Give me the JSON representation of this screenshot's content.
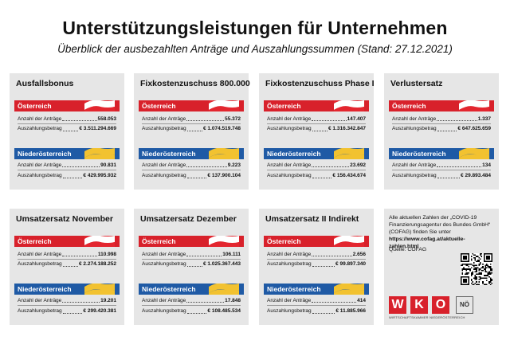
{
  "title": "Unterstützungsleistungen für Unternehmen",
  "subtitle": "Überblick der ausbezahlten Anträge und Auszahlungssummen (Stand: 27.12.2021)",
  "labels": {
    "count": "Anzahl der Anträge",
    "amount": "Auszahlungsbetrag"
  },
  "regions": {
    "at": "Österreich",
    "noe": "Niederösterreich"
  },
  "colors": {
    "red": "#d8212b",
    "blue": "#1f5aa5",
    "card": "#e6e6e6"
  },
  "cards": [
    {
      "title": "Ausfallsbonus",
      "at": {
        "count": "558.053",
        "amount": "€ 3.511.294.669"
      },
      "noe": {
        "count": "90.831",
        "amount": "€ 429.995.932"
      }
    },
    {
      "title": "Fixkostenzuschuss 800.000",
      "at": {
        "count": "55.372",
        "amount": "€ 1.074.519.748"
      },
      "noe": {
        "count": "9.223",
        "amount": "€ 137.900.104"
      }
    },
    {
      "title": "Fixkostenzuschuss Phase I",
      "at": {
        "count": "147.407",
        "amount": "€ 1.316.342.847"
      },
      "noe": {
        "count": "23.692",
        "amount": "€ 156.434.674"
      }
    },
    {
      "title": "Verlustersatz",
      "at": {
        "count": "1.337",
        "amount": "€ 647.625.659"
      },
      "noe": {
        "count": "134",
        "amount": "€ 29.893.484"
      }
    },
    {
      "title": "Umsatzersatz November",
      "at": {
        "count": "110.998",
        "amount": "€ 2.274.188.252"
      },
      "noe": {
        "count": "19.201",
        "amount": "€ 299.420.381"
      }
    },
    {
      "title": "Umsatzersatz Dezember",
      "at": {
        "count": "106.111",
        "amount": "€ 1.025.367.443"
      },
      "noe": {
        "count": "17.848",
        "amount": "€ 108.485.534"
      }
    },
    {
      "title": "Umsatzersatz II Indirekt",
      "at": {
        "count": "2.656",
        "amount": "€ 99.897.340"
      },
      "noe": {
        "count": "414",
        "amount": "€ 11.885.966"
      }
    }
  ],
  "info": {
    "text": "Alle aktuellen Zahlen der „COVID-19 Finanzierungsagentur des Bundes GmbH“ (COFAG) finden Sie unter",
    "link": "https://www.cofag.at/aktuelle-zahlen.html",
    "source": "Quelle: COFAG"
  },
  "logo": {
    "letters": [
      "W",
      "K",
      "O"
    ],
    "region": "NÖ",
    "subline": "WIRTSCHAFTSKAMMER NIEDERÖSTERREICH"
  }
}
